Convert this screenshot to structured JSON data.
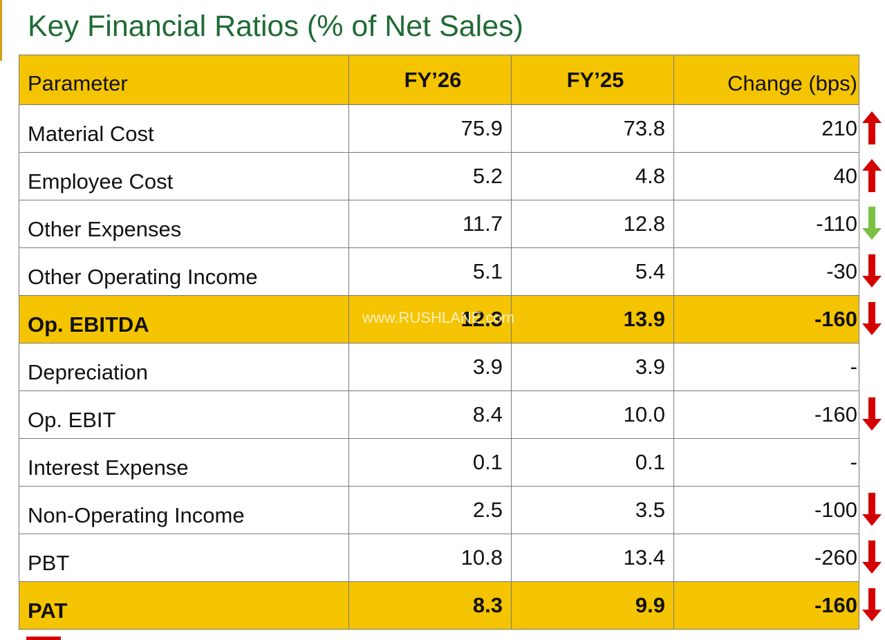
{
  "title": "Key Financial Ratios (% of Net Sales)",
  "watermark": "www.RUSHLANE.com",
  "colors": {
    "title": "#1e6b34",
    "header_fill": "#f5c400",
    "up_arrow": "#d40000",
    "down_arrow": "#d40000",
    "favorable_arrow": "#7ac143"
  },
  "table": {
    "headers": [
      "Parameter",
      "FY’26",
      "FY’25",
      "Change (bps)"
    ],
    "rows": [
      {
        "parameter": "Material Cost",
        "fy26": "75.9",
        "fy25": "73.8",
        "change": "210",
        "arrow": "up-red",
        "highlight": false
      },
      {
        "parameter": "Employee Cost",
        "fy26": "5.2",
        "fy25": "4.8",
        "change": "40",
        "arrow": "up-red",
        "highlight": false
      },
      {
        "parameter": "Other Expenses",
        "fy26": "11.7",
        "fy25": "12.8",
        "change": "-110",
        "arrow": "down-green",
        "highlight": false
      },
      {
        "parameter": "Other Operating Income",
        "fy26": "5.1",
        "fy25": "5.4",
        "change": "-30",
        "arrow": "down-red",
        "highlight": false
      },
      {
        "parameter": "Op. EBITDA",
        "fy26": "12.3",
        "fy25": "13.9",
        "change": "-160",
        "arrow": "down-red",
        "highlight": true
      },
      {
        "parameter": "Depreciation",
        "fy26": "3.9",
        "fy25": "3.9",
        "change": "-",
        "arrow": "none",
        "highlight": false
      },
      {
        "parameter": "Op. EBIT",
        "fy26": "8.4",
        "fy25": "10.0",
        "change": "-160",
        "arrow": "down-red",
        "highlight": false
      },
      {
        "parameter": "Interest Expense",
        "fy26": "0.1",
        "fy25": "0.1",
        "change": "-",
        "arrow": "none",
        "highlight": false
      },
      {
        "parameter": "Non-Operating Income",
        "fy26": "2.5",
        "fy25": "3.5",
        "change": "-100",
        "arrow": "down-red",
        "highlight": false
      },
      {
        "parameter": "PBT",
        "fy26": "10.8",
        "fy25": "13.4",
        "change": "-260",
        "arrow": "down-red",
        "highlight": false
      },
      {
        "parameter": "PAT",
        "fy26": "8.3",
        "fy25": "9.9",
        "change": "-160",
        "arrow": "down-red",
        "highlight": true
      }
    ]
  }
}
